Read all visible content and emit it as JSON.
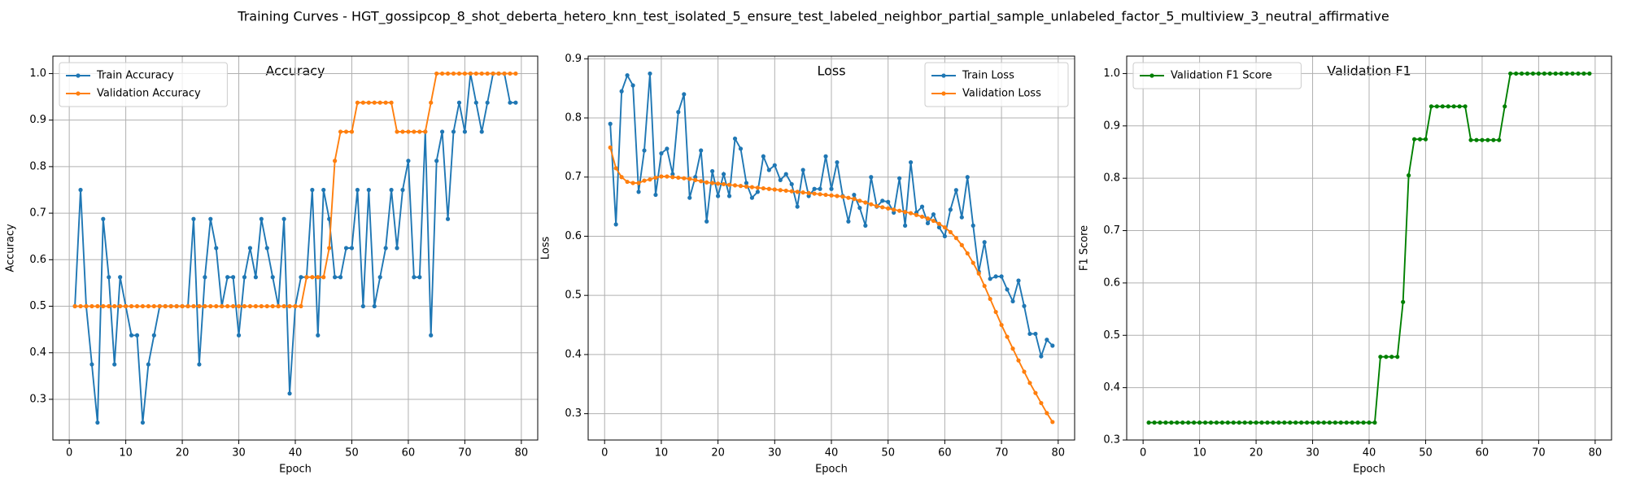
{
  "title": "Training Curves - HGT_gossipcop_8_shot_deberta_hetero_knn_test_isolated_5_ensure_test_labeled_neighbor_partial_sample_unlabeled_factor_5_multiview_3_neutral_affirmative",
  "chart_data": [
    {
      "type": "line",
      "title": "Accuracy",
      "x_label": "Epoch",
      "y_label": "Accuracy",
      "legend": "upper left",
      "grid": true,
      "x": [
        1,
        2,
        3,
        4,
        5,
        6,
        7,
        8,
        9,
        10,
        11,
        12,
        13,
        14,
        15,
        16,
        17,
        18,
        19,
        20,
        21,
        22,
        23,
        24,
        25,
        26,
        27,
        28,
        29,
        30,
        31,
        32,
        33,
        34,
        35,
        36,
        37,
        38,
        39,
        40,
        41,
        42,
        43,
        44,
        45,
        46,
        47,
        48,
        49,
        50,
        51,
        52,
        53,
        54,
        55,
        56,
        57,
        58,
        59,
        60,
        61,
        62,
        63,
        64,
        65,
        66,
        67,
        68,
        69,
        70,
        71,
        72,
        73,
        74,
        75,
        76,
        77,
        78,
        79
      ],
      "xlim": [
        -2.9,
        82.9
      ],
      "xticks": [
        0,
        10,
        20,
        30,
        40,
        50,
        60,
        70,
        80
      ],
      "ylim": [
        0.2125,
        1.0375
      ],
      "yticks": [
        0.3,
        0.4,
        0.5,
        0.6,
        0.7,
        0.8,
        0.9,
        {
          "value": 1,
          "label": "1.0"
        }
      ],
      "series": [
        {
          "name": "Train Accuracy",
          "color": "#1f77b4",
          "values": [
            0.5,
            0.75,
            0.5,
            0.375,
            0.25,
            0.6875,
            0.5625,
            0.375,
            0.5625,
            0.5,
            0.4375,
            0.4375,
            0.25,
            0.375,
            0.4375,
            0.5,
            0.5,
            0.5,
            0.5,
            0.5,
            0.5,
            0.6875,
            0.375,
            0.5625,
            0.6875,
            0.625,
            0.5,
            0.5625,
            0.5625,
            0.4375,
            0.5625,
            0.625,
            0.5625,
            0.6875,
            0.625,
            0.5625,
            0.5,
            0.6875,
            0.3125,
            0.5,
            0.5625,
            0.5625,
            0.75,
            0.4375,
            0.75,
            0.6875,
            0.5625,
            0.5625,
            0.625,
            0.625,
            0.75,
            0.5,
            0.75,
            0.5,
            0.5625,
            0.625,
            0.75,
            0.625,
            0.75,
            0.8125,
            0.5625,
            0.5625,
            0.875,
            0.4375,
            0.8125,
            0.875,
            0.6875,
            0.875,
            0.9375,
            0.875,
            1.0,
            0.9375,
            0.875,
            0.9375,
            1.0,
            1.0,
            1.0,
            0.9375,
            0.9375
          ]
        },
        {
          "name": "Validation Accuracy",
          "color": "#ff7f0e",
          "values": [
            0.5,
            0.5,
            0.5,
            0.5,
            0.5,
            0.5,
            0.5,
            0.5,
            0.5,
            0.5,
            0.5,
            0.5,
            0.5,
            0.5,
            0.5,
            0.5,
            0.5,
            0.5,
            0.5,
            0.5,
            0.5,
            0.5,
            0.5,
            0.5,
            0.5,
            0.5,
            0.5,
            0.5,
            0.5,
            0.5,
            0.5,
            0.5,
            0.5,
            0.5,
            0.5,
            0.5,
            0.5,
            0.5,
            0.5,
            0.5,
            0.5,
            0.5625,
            0.5625,
            0.5625,
            0.5625,
            0.625,
            0.8125,
            0.875,
            0.875,
            0.875,
            0.9375,
            0.9375,
            0.9375,
            0.9375,
            0.9375,
            0.9375,
            0.9375,
            0.875,
            0.875,
            0.875,
            0.875,
            0.875,
            0.875,
            0.9375,
            1.0,
            1.0,
            1.0,
            1.0,
            1.0,
            1.0,
            1.0,
            1.0,
            1.0,
            1.0,
            1.0,
            1.0,
            1.0,
            1.0,
            1.0
          ]
        }
      ]
    },
    {
      "type": "line",
      "title": "Loss",
      "x_label": "Epoch",
      "y_label": "Loss",
      "legend": "upper right",
      "grid": true,
      "x": [
        1,
        2,
        3,
        4,
        5,
        6,
        7,
        8,
        9,
        10,
        11,
        12,
        13,
        14,
        15,
        16,
        17,
        18,
        19,
        20,
        21,
        22,
        23,
        24,
        25,
        26,
        27,
        28,
        29,
        30,
        31,
        32,
        33,
        34,
        35,
        36,
        37,
        38,
        39,
        40,
        41,
        42,
        43,
        44,
        45,
        46,
        47,
        48,
        49,
        50,
        51,
        52,
        53,
        54,
        55,
        56,
        57,
        58,
        59,
        60,
        61,
        62,
        63,
        64,
        65,
        66,
        67,
        68,
        69,
        70,
        71,
        72,
        73,
        74,
        75,
        76,
        77,
        78,
        79
      ],
      "xlim": [
        -2.9,
        82.9
      ],
      "xticks": [
        0,
        10,
        20,
        30,
        40,
        50,
        60,
        70,
        80
      ],
      "ylim": [
        0.2555,
        0.9045
      ],
      "yticks": [
        0.3,
        0.4,
        0.5,
        0.6,
        0.7,
        0.8,
        0.9
      ],
      "series": [
        {
          "name": "Train Loss",
          "color": "#1f77b4",
          "values": [
            0.79,
            0.62,
            0.845,
            0.872,
            0.855,
            0.675,
            0.745,
            0.875,
            0.67,
            0.74,
            0.748,
            0.705,
            0.81,
            0.84,
            0.665,
            0.7,
            0.745,
            0.625,
            0.71,
            0.668,
            0.705,
            0.668,
            0.765,
            0.748,
            0.69,
            0.665,
            0.675,
            0.735,
            0.712,
            0.72,
            0.695,
            0.705,
            0.688,
            0.65,
            0.712,
            0.668,
            0.68,
            0.68,
            0.735,
            0.68,
            0.725,
            0.668,
            0.625,
            0.67,
            0.648,
            0.618,
            0.7,
            0.65,
            0.66,
            0.658,
            0.64,
            0.698,
            0.618,
            0.725,
            0.64,
            0.65,
            0.622,
            0.637,
            0.615,
            0.6,
            0.645,
            0.678,
            0.632,
            0.7,
            0.618,
            0.54,
            0.59,
            0.528,
            0.532,
            0.532,
            0.51,
            0.49,
            0.525,
            0.482,
            0.435,
            0.435,
            0.397,
            0.425,
            0.415
          ]
        },
        {
          "name": "Validation Loss",
          "color": "#ff7f0e",
          "values": [
            0.75,
            0.715,
            0.7,
            0.692,
            0.69,
            0.69,
            0.694,
            0.696,
            0.699,
            0.701,
            0.701,
            0.7,
            0.699,
            0.698,
            0.697,
            0.695,
            0.693,
            0.691,
            0.69,
            0.689,
            0.688,
            0.687,
            0.686,
            0.685,
            0.684,
            0.683,
            0.682,
            0.681,
            0.68,
            0.679,
            0.678,
            0.677,
            0.676,
            0.675,
            0.674,
            0.673,
            0.672,
            0.671,
            0.67,
            0.669,
            0.668,
            0.667,
            0.665,
            0.663,
            0.66,
            0.657,
            0.654,
            0.651,
            0.649,
            0.647,
            0.645,
            0.643,
            0.641,
            0.639,
            0.636,
            0.633,
            0.63,
            0.626,
            0.621,
            0.615,
            0.607,
            0.597,
            0.585,
            0.571,
            0.555,
            0.537,
            0.516,
            0.494,
            0.472,
            0.45,
            0.43,
            0.41,
            0.39,
            0.371,
            0.352,
            0.335,
            0.318,
            0.301,
            0.286
          ]
        }
      ]
    },
    {
      "type": "line",
      "title": "Validation F1",
      "x_label": "Epoch",
      "y_label": "F1 Score",
      "legend": "upper left",
      "grid": true,
      "x": [
        1,
        2,
        3,
        4,
        5,
        6,
        7,
        8,
        9,
        10,
        11,
        12,
        13,
        14,
        15,
        16,
        17,
        18,
        19,
        20,
        21,
        22,
        23,
        24,
        25,
        26,
        27,
        28,
        29,
        30,
        31,
        32,
        33,
        34,
        35,
        36,
        37,
        38,
        39,
        40,
        41,
        42,
        43,
        44,
        45,
        46,
        47,
        48,
        49,
        50,
        51,
        52,
        53,
        54,
        55,
        56,
        57,
        58,
        59,
        60,
        61,
        62,
        63,
        64,
        65,
        66,
        67,
        68,
        69,
        70,
        71,
        72,
        73,
        74,
        75,
        76,
        77,
        78,
        79
      ],
      "xlim": [
        -2.9,
        82.9
      ],
      "xticks": [
        0,
        10,
        20,
        30,
        40,
        50,
        60,
        70,
        80
      ],
      "ylim": [
        0.3,
        1.0333
      ],
      "yticks": [
        0.3,
        0.4,
        0.5,
        0.6,
        0.7,
        0.8,
        0.9,
        {
          "value": 1,
          "label": "1.0"
        }
      ],
      "series": [
        {
          "name": "Validation F1 Score",
          "color": "#008000",
          "values": [
            0.3333,
            0.3333,
            0.3333,
            0.3333,
            0.3333,
            0.3333,
            0.3333,
            0.3333,
            0.3333,
            0.3333,
            0.3333,
            0.3333,
            0.3333,
            0.3333,
            0.3333,
            0.3333,
            0.3333,
            0.3333,
            0.3333,
            0.3333,
            0.3333,
            0.3333,
            0.3333,
            0.3333,
            0.3333,
            0.3333,
            0.3333,
            0.3333,
            0.3333,
            0.3333,
            0.3333,
            0.3333,
            0.3333,
            0.3333,
            0.3333,
            0.3333,
            0.3333,
            0.3333,
            0.3333,
            0.3333,
            0.3333,
            0.4589,
            0.4589,
            0.4589,
            0.4589,
            0.5636,
            0.8055,
            0.8745,
            0.8745,
            0.8745,
            0.9373,
            0.9373,
            0.9373,
            0.9373,
            0.9373,
            0.9373,
            0.9373,
            0.873,
            0.873,
            0.873,
            0.873,
            0.873,
            0.873,
            0.9373,
            1.0,
            1.0,
            1.0,
            1.0,
            1.0,
            1.0,
            1.0,
            1.0,
            1.0,
            1.0,
            1.0,
            1.0,
            1.0,
            1.0,
            1.0
          ]
        }
      ]
    }
  ]
}
